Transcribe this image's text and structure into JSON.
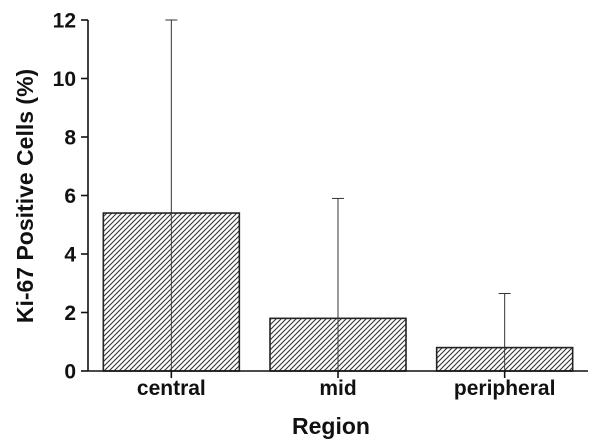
{
  "chart_data": {
    "type": "bar",
    "title": "",
    "xlabel": "Region",
    "ylabel": "Ki-67 Positive Cells (%)",
    "categories": [
      "central",
      "mid",
      "peripheral"
    ],
    "values": [
      5.4,
      1.8,
      0.8
    ],
    "error_upper": [
      12.0,
      5.9,
      2.65
    ],
    "ylim": [
      0,
      12
    ],
    "yticks": [
      0,
      2,
      4,
      6,
      8,
      10,
      12
    ],
    "bar_pattern": "diagonal-hatch",
    "grid": false,
    "legend": "none",
    "colors": {
      "bar_fill": "#ffffff",
      "bar_stroke": "#222222",
      "hatch": "#333333",
      "axis": "#111111",
      "text": "#111111"
    }
  }
}
